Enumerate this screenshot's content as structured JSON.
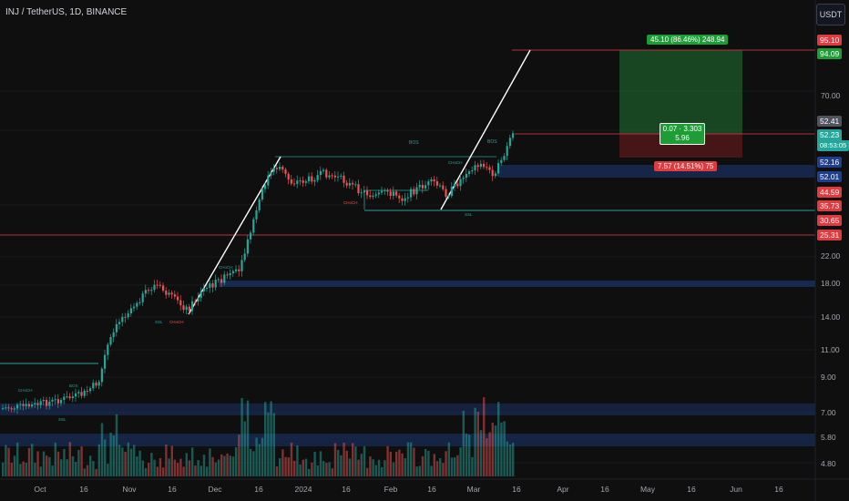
{
  "symbol_title": "INJ / TetherUS, 1D, BINANCE",
  "currency": "USDT",
  "price_axis": [
    "70.00",
    "22.00",
    "18.00",
    "14.00",
    "11.00",
    "9.00",
    "7.00",
    "5.80",
    "4.80"
  ],
  "price_tags": {
    "t95": "95.10",
    "t94": "94.09",
    "t5241": "52.41",
    "t5223": "52.23",
    "countdown": "08:53:05",
    "t5216": "52.16",
    "t5201": "52.01",
    "t4459": "44.59",
    "t3573": "35.73",
    "t3065": "30.65",
    "t2531": "25.31"
  },
  "date_axis": [
    "Oct",
    "16",
    "Nov",
    "16",
    "Dec",
    "16",
    "2024",
    "16",
    "Feb",
    "16",
    "Mar",
    "16",
    "Apr",
    "16",
    "May",
    "16",
    "Jun",
    "16"
  ],
  "position_tool": {
    "target_label": "45.10 (86.46%) 248.94",
    "center_line1": "0.07 · 3.303",
    "center_line2": "5.96",
    "stop_label": "7.57 (14.51%) 75"
  },
  "annotations": {
    "bos1": "BOS",
    "bos2": "BOS",
    "choch_mar": "CHoCH",
    "choch_jan": "CHoCH",
    "ssl_feb": "SSL",
    "choch_dec": "CHoCH",
    "choch_nov": "CHoCH",
    "ssl_nov": "SSL",
    "choch_oct": "CHoCH",
    "bos_oct": "BOS",
    "ssl_oct": "SSL"
  },
  "colors": {
    "up": "#26a69a",
    "down": "#ef5350",
    "target_zone": "#1e5a2a",
    "stop_zone": "#5a1a1a",
    "supply_zone": "#1c3a78",
    "axis_bg": "#0f0f0f"
  }
}
